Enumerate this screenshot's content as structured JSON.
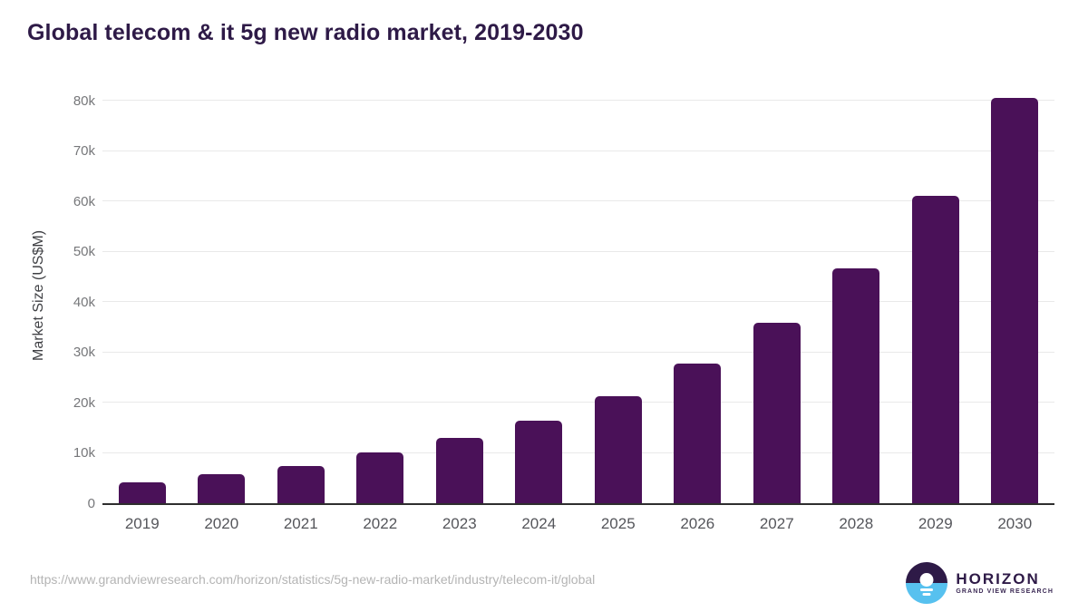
{
  "title": "Global telecom & it 5g new radio market, 2019-2030",
  "source_url": "https://www.grandviewresearch.com/horizon/statistics/5g-new-radio-market/industry/telecom-it/global",
  "logo": {
    "brand": "HORIZON",
    "subbrand": "GRAND VIEW RESEARCH"
  },
  "colors": {
    "bar": "#4a1158",
    "title": "#2e1a47",
    "gridline": "#e9e9e9",
    "axis_line": "#2e2e2e",
    "tick_label": "#76777a",
    "x_label": "#55565b",
    "url_text": "#b4b4b4",
    "logo_blue": "#57c1ef",
    "logo_purple": "#2e1a47"
  },
  "chart_data": {
    "type": "bar",
    "title": "Global telecom & it 5g new radio market, 2019-2030",
    "xlabel": "",
    "ylabel": "Market Size (US$M)",
    "categories": [
      "2019",
      "2020",
      "2021",
      "2022",
      "2023",
      "2024",
      "2025",
      "2026",
      "2027",
      "2028",
      "2029",
      "2030"
    ],
    "values": [
      4200,
      5700,
      7400,
      10000,
      12900,
      16400,
      21200,
      27700,
      35800,
      46600,
      61100,
      80400
    ],
    "ylim": [
      0,
      80000
    ],
    "ytick_values": [
      0,
      10000,
      20000,
      30000,
      40000,
      50000,
      60000,
      70000,
      80000
    ],
    "ytick_labels": [
      "0",
      "10k",
      "20k",
      "30k",
      "40k",
      "50k",
      "60k",
      "70k",
      "80k"
    ],
    "grid": "horizontal",
    "legend": "none",
    "bar_color": "#4a1158"
  }
}
